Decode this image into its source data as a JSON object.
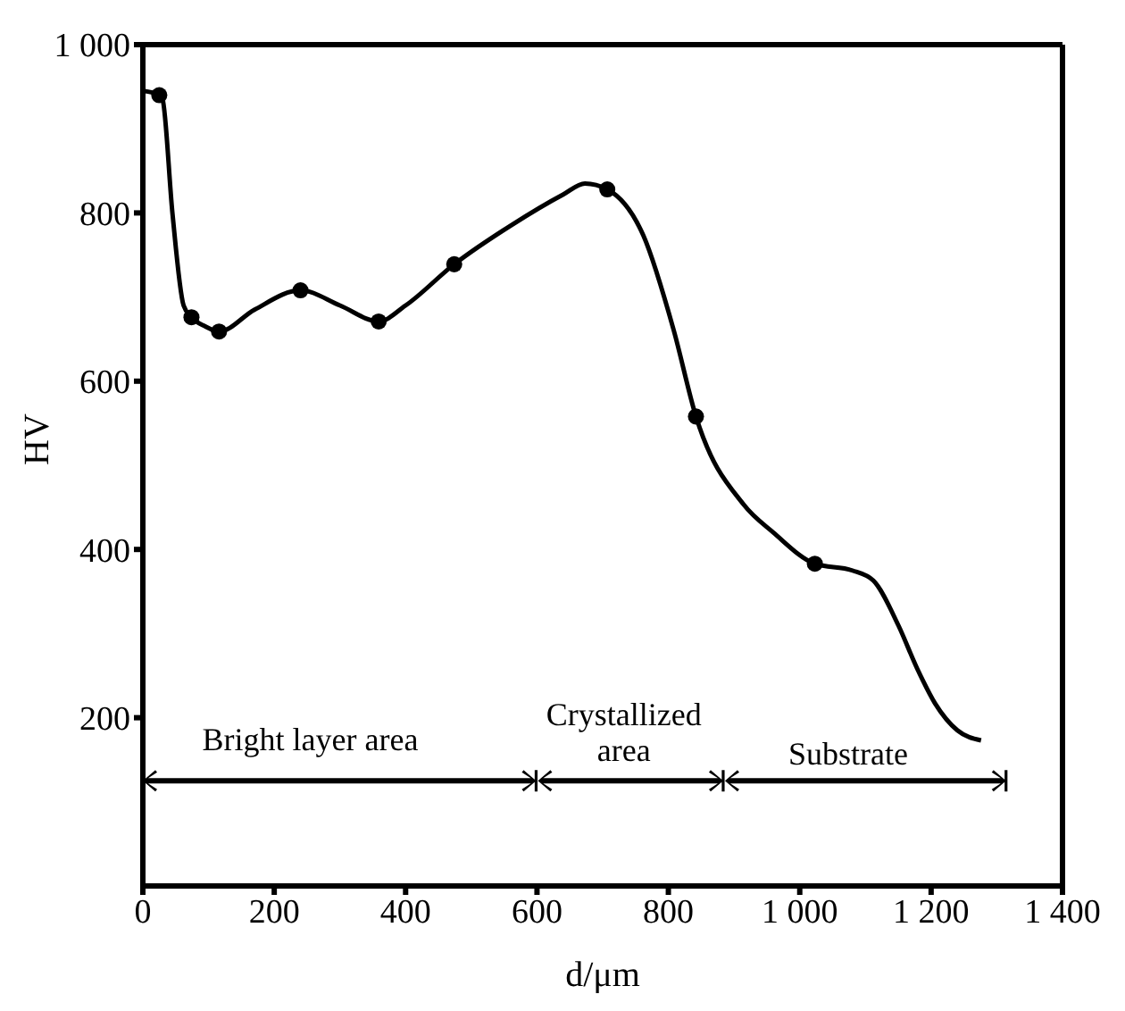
{
  "chart_data": {
    "type": "line",
    "xlabel": "d/μm",
    "ylabel": "HV",
    "xlim": [
      0,
      1400
    ],
    "xticks": [
      0,
      200,
      400,
      600,
      800,
      {
        "value": 1000,
        "label": "1 000"
      },
      {
        "value": 1200,
        "label": "1 200"
      },
      {
        "value": 1400,
        "label": "1 400"
      }
    ],
    "ylim": [
      0,
      1000
    ],
    "yticks": [
      200,
      400,
      600,
      800,
      {
        "value": 1000,
        "label": "1 000"
      }
    ],
    "grid": false,
    "line_style": "solid",
    "series": [
      {
        "type": "line",
        "color": "#000000",
        "marker": "none",
        "x": [
          0,
          25,
          30,
          45,
          62,
          74,
          95,
          116,
          170,
          240,
          300,
          359,
          400,
          474,
          560,
          640,
          673,
          707,
          762,
          808,
          842,
          915,
          960,
          1023,
          1080,
          1112,
          1150,
          1179,
          1206,
          1240,
          1276
        ],
        "values": [
          945,
          940,
          935,
          800,
          690,
          676,
          665,
          659,
          685,
          708,
          690,
          671,
          690,
          739,
          785,
          822,
          835,
          828,
          773,
          661,
          558,
          453,
          420,
          383,
          375,
          363,
          310,
          258,
          217,
          185,
          173
        ]
      },
      {
        "type": "scatter",
        "color": "#000000",
        "marker": "circle",
        "x": [
          25,
          74,
          116,
          240,
          359,
          474,
          707,
          842,
          1023
        ],
        "values": [
          940,
          676,
          659,
          708,
          671,
          739,
          828,
          558,
          383
        ]
      }
    ],
    "annotations": [
      "Bright layer area",
      "Crystallized area",
      "Substrate"
    ]
  }
}
